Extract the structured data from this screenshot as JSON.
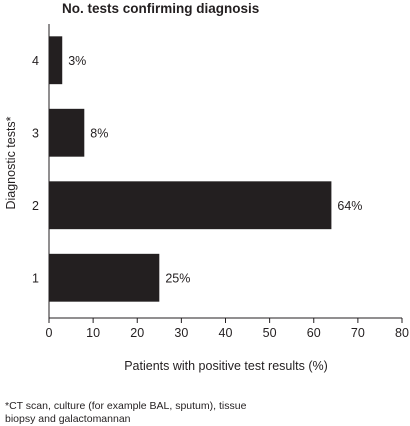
{
  "chart_data": {
    "type": "bar",
    "orientation": "horizontal",
    "title": "No. tests confirming diagnosis",
    "ylabel": "Diagnostic tests*",
    "xlabel": "Patients with positive test results (%)",
    "categories": [
      "4",
      "3",
      "2",
      "1"
    ],
    "values": [
      3,
      8,
      64,
      25
    ],
    "data_labels": [
      "3%",
      "8%",
      "64%",
      "25%"
    ],
    "xlim": [
      0,
      80
    ],
    "xticks": [
      0,
      10,
      20,
      30,
      40,
      50,
      60,
      70,
      80
    ],
    "grid": false,
    "legend": "none",
    "bar_color": "#231f20"
  },
  "footnote": "*CT scan, culture (for example BAL, sputum), tissue biopsy and galactomannan"
}
